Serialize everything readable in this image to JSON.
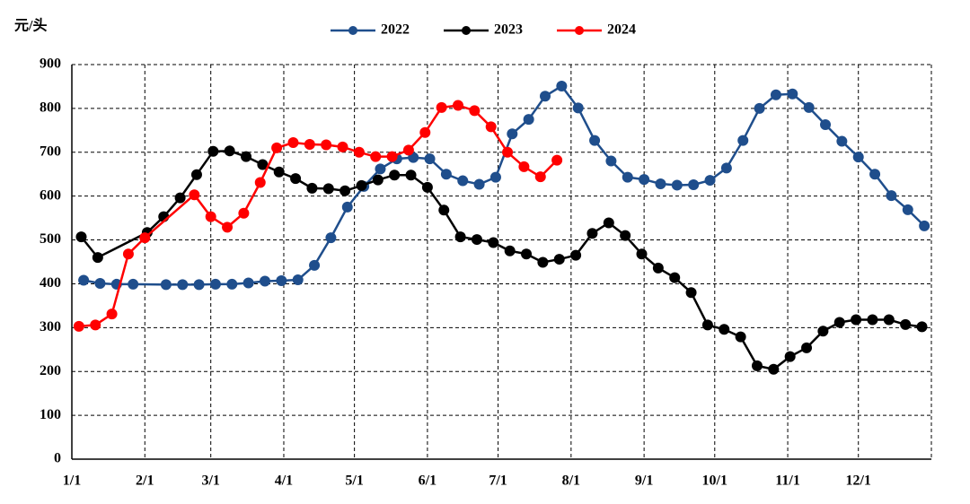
{
  "chart_data": {
    "type": "line",
    "y_label": "元/头",
    "xlim": [
      0,
      365
    ],
    "ylim": [
      0,
      900
    ],
    "yticks": [
      0,
      100,
      200,
      300,
      400,
      500,
      600,
      700,
      800,
      900
    ],
    "xticks": [
      {
        "value": 0,
        "label": "1/1"
      },
      {
        "value": 31,
        "label": "2/1"
      },
      {
        "value": 59,
        "label": "3/1"
      },
      {
        "value": 90,
        "label": "4/1"
      },
      {
        "value": 120,
        "label": "5/1"
      },
      {
        "value": 151,
        "label": "6/1"
      },
      {
        "value": 181,
        "label": "7/1"
      },
      {
        "value": 212,
        "label": "8/1"
      },
      {
        "value": 243,
        "label": "9/1"
      },
      {
        "value": 273,
        "label": "10/1"
      },
      {
        "value": 304,
        "label": "11/1"
      },
      {
        "value": 334,
        "label": "12/1"
      }
    ],
    "grid": true,
    "series": [
      {
        "name": "2022",
        "color": "#1f4e8c",
        "x": [
          5,
          12,
          19,
          26,
          40,
          47,
          54,
          61,
          68,
          75,
          82,
          89,
          96,
          103,
          110,
          117,
          124,
          131,
          138,
          145,
          152,
          159,
          166,
          173,
          180,
          187,
          194,
          201,
          208,
          215,
          222,
          229,
          236,
          243,
          250,
          257,
          264,
          271,
          278,
          285,
          292,
          299,
          306,
          313,
          320,
          327,
          334,
          341,
          348,
          355,
          362
        ],
        "values": [
          408,
          401,
          399,
          399,
          398,
          398,
          398,
          399,
          399,
          402,
          406,
          407,
          409,
          442,
          505,
          575,
          622,
          662,
          685,
          688,
          685,
          650,
          635,
          627,
          643,
          742,
          775,
          828,
          851,
          801,
          727,
          680,
          643,
          638,
          628,
          625,
          626,
          636,
          664,
          727,
          800,
          831,
          833,
          802,
          763,
          725,
          689,
          650,
          601,
          569,
          532
        ]
      },
      {
        "name": "2023",
        "color": "#000000",
        "x": [
          4,
          11,
          32,
          39,
          46,
          53,
          60,
          67,
          74,
          81,
          88,
          95,
          102,
          109,
          116,
          123,
          130,
          137,
          144,
          151,
          158,
          165,
          172,
          179,
          186,
          193,
          200,
          207,
          214,
          221,
          228,
          235,
          242,
          249,
          256,
          263,
          270,
          277,
          284,
          291,
          298,
          305,
          312,
          319,
          326,
          333,
          340,
          347,
          354,
          361
        ],
        "values": [
          507,
          460,
          517,
          553,
          596,
          649,
          702,
          703,
          690,
          672,
          655,
          640,
          618,
          617,
          612,
          624,
          637,
          648,
          648,
          620,
          568,
          507,
          501,
          494,
          475,
          468,
          449,
          456,
          465,
          515,
          539,
          510,
          468,
          436,
          414,
          380,
          306,
          296,
          279,
          213,
          205,
          234,
          254,
          292,
          312,
          318,
          318,
          318,
          307,
          302
        ]
      },
      {
        "name": "2024",
        "color": "#ff0000",
        "x": [
          3,
          10,
          17,
          24,
          31,
          52,
          59,
          66,
          73,
          80,
          87,
          94,
          101,
          108,
          115,
          122,
          129,
          136,
          143,
          150,
          157,
          164,
          171,
          178,
          185,
          192,
          199,
          206
        ],
        "values": [
          303,
          306,
          331,
          468,
          505,
          603,
          553,
          529,
          561,
          631,
          710,
          722,
          718,
          717,
          712,
          700,
          690,
          690,
          705,
          745,
          802,
          807,
          795,
          758,
          700,
          667,
          644,
          682
        ]
      }
    ]
  }
}
